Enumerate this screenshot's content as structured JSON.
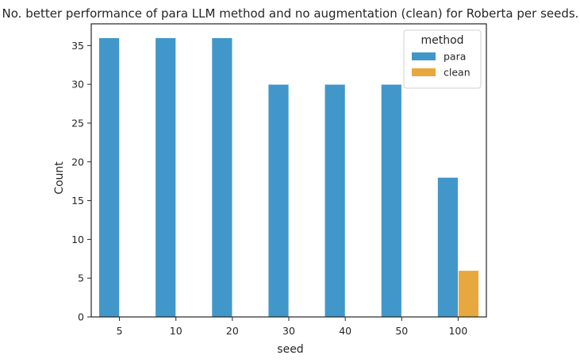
{
  "chart_data": {
    "type": "bar",
    "title": "No. better performance of para LLM method and no augmentation (clean) for Roberta per seeds.",
    "xlabel": "seed",
    "ylabel": "Count",
    "categories": [
      "5",
      "10",
      "20",
      "30",
      "40",
      "50",
      "100"
    ],
    "series": [
      {
        "name": "para",
        "color": "#4197c9",
        "values": [
          36,
          36,
          36,
          30,
          30,
          30,
          18
        ]
      },
      {
        "name": "clean",
        "color": "#e8a840",
        "values": [
          0,
          0,
          0,
          0,
          0,
          0,
          6
        ]
      }
    ],
    "ylim": [
      0,
      37.8
    ],
    "yticks": [
      0,
      5,
      10,
      15,
      20,
      25,
      30,
      35
    ],
    "grid": false,
    "legend": {
      "title": "method",
      "placement": "top-right"
    }
  }
}
